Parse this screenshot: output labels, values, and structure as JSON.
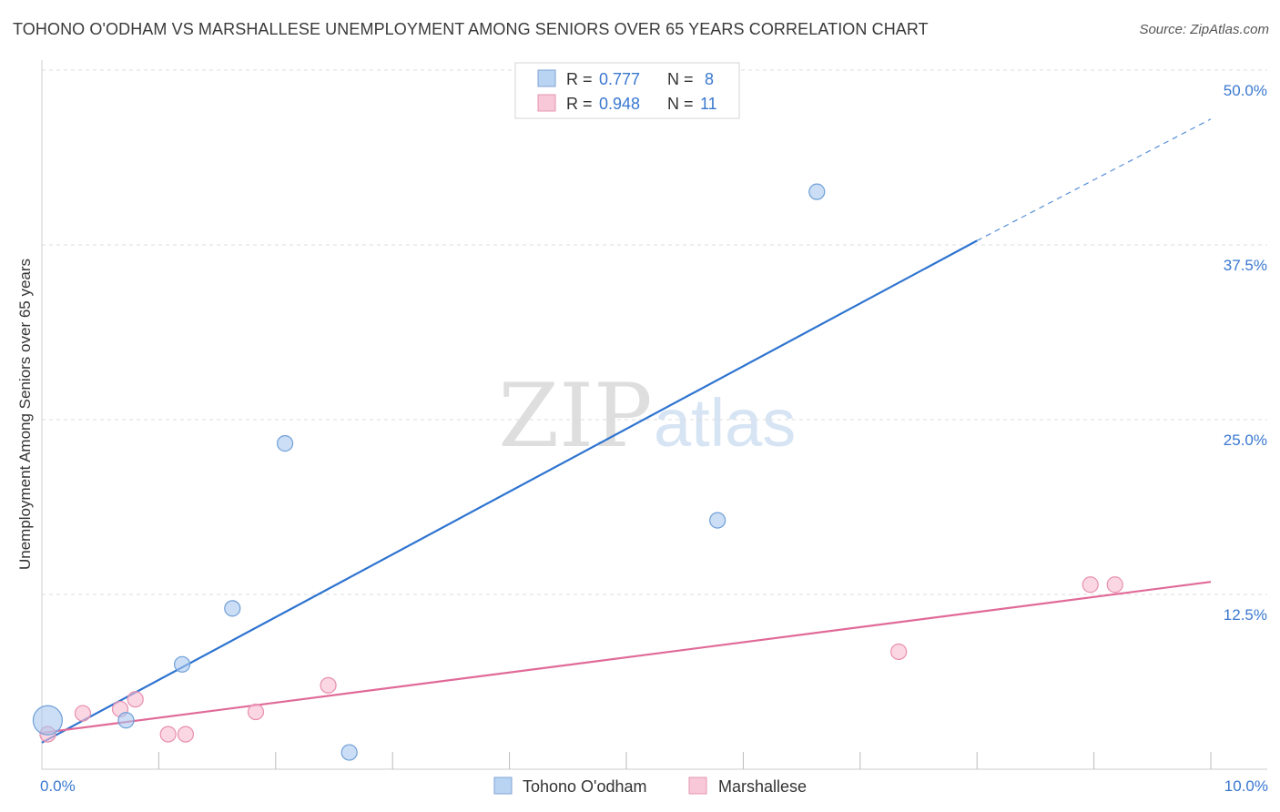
{
  "header": {
    "title": "TOHONO O'ODHAM VS MARSHALLESE UNEMPLOYMENT AMONG SENIORS OVER 65 YEARS CORRELATION CHART",
    "source": "Source: ZipAtlas.com"
  },
  "watermark": {
    "zip": "ZIP",
    "atlas": "atlas"
  },
  "chart_data": {
    "type": "scatter",
    "title": "TOHONO O'ODHAM VS MARSHALLESE UNEMPLOYMENT AMONG SENIORS OVER 65 YEARS CORRELATION CHART",
    "xlabel": "",
    "ylabel": "Unemployment Among Seniors over 65 years",
    "xlim": [
      0,
      10
    ],
    "ylim": [
      0,
      50
    ],
    "x_tick_labels": [
      {
        "value": 0,
        "label": "0.0%"
      },
      {
        "value": 10,
        "label": "10.0%"
      }
    ],
    "y_ticks": [
      {
        "value": 12.5,
        "label": "12.5%"
      },
      {
        "value": 25,
        "label": "25.0%"
      },
      {
        "value": 37.5,
        "label": "37.5%"
      },
      {
        "value": 50,
        "label": "50.0%"
      }
    ],
    "grid": true,
    "legend_position": "top-center",
    "series": [
      {
        "name": "Tohono O'odham",
        "color": "#a9c8ef",
        "stroke": "#6f9fd8",
        "line_color": "#2e74d0",
        "R": "0.777",
        "N": "8",
        "points": [
          {
            "x": 0.05,
            "y": 3.5,
            "big": true
          },
          {
            "x": 0.72,
            "y": 3.5
          },
          {
            "x": 1.2,
            "y": 7.5
          },
          {
            "x": 1.63,
            "y": 11.5
          },
          {
            "x": 2.08,
            "y": 23.3
          },
          {
            "x": 2.63,
            "y": 1.2
          },
          {
            "x": 5.78,
            "y": 17.8
          },
          {
            "x": 6.63,
            "y": 41.3
          }
        ],
        "trend": {
          "x0": 0.0,
          "y0": 1.9,
          "x1": 8.0,
          "y1": 37.8,
          "dash_to_x": 10.0,
          "dash_to_y": 46.5
        }
      },
      {
        "name": "Marshallese",
        "color": "#f6bdd0",
        "stroke": "#e88fae",
        "line_color": "#e06a98",
        "R": "0.948",
        "N": "11",
        "points": [
          {
            "x": 0.05,
            "y": 2.5
          },
          {
            "x": 0.35,
            "y": 4.0
          },
          {
            "x": 0.67,
            "y": 4.3
          },
          {
            "x": 0.8,
            "y": 5.0
          },
          {
            "x": 1.08,
            "y": 2.5
          },
          {
            "x": 1.23,
            "y": 2.5
          },
          {
            "x": 1.83,
            "y": 4.1
          },
          {
            "x": 2.45,
            "y": 6.0
          },
          {
            "x": 7.33,
            "y": 8.4
          },
          {
            "x": 8.97,
            "y": 13.2
          },
          {
            "x": 9.18,
            "y": 13.2
          }
        ],
        "trend": {
          "x0": 0.0,
          "y0": 2.6,
          "x1": 10.0,
          "y1": 13.4
        }
      }
    ]
  },
  "legend": {
    "r_label": "R =",
    "n_label": "N =",
    "bottom_items": [
      "Tohono O'odham",
      "Marshallese"
    ]
  }
}
